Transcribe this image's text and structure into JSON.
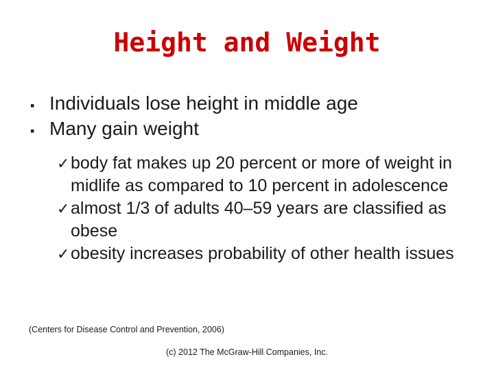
{
  "slide": {
    "title": "Height and Weight",
    "bullets": [
      {
        "text": "Individuals lose height in middle age"
      },
      {
        "text": "Many gain weight"
      }
    ],
    "bullet_marker": "§",
    "subbullet_marker": "ü",
    "subbullets": [
      {
        "text": "body fat makes up 20 percent or more of weight in midlife as compared to 10 percent in adolescence"
      },
      {
        "text": "almost 1/3 of adults 40–59 years are classified as obese"
      },
      {
        "text": "obesity increases probability of other health issues"
      }
    ],
    "citation": "(Centers for Disease Control and Prevention, 2006)",
    "footer": "(c) 2012 The McGraw-Hill Companies, Inc."
  }
}
